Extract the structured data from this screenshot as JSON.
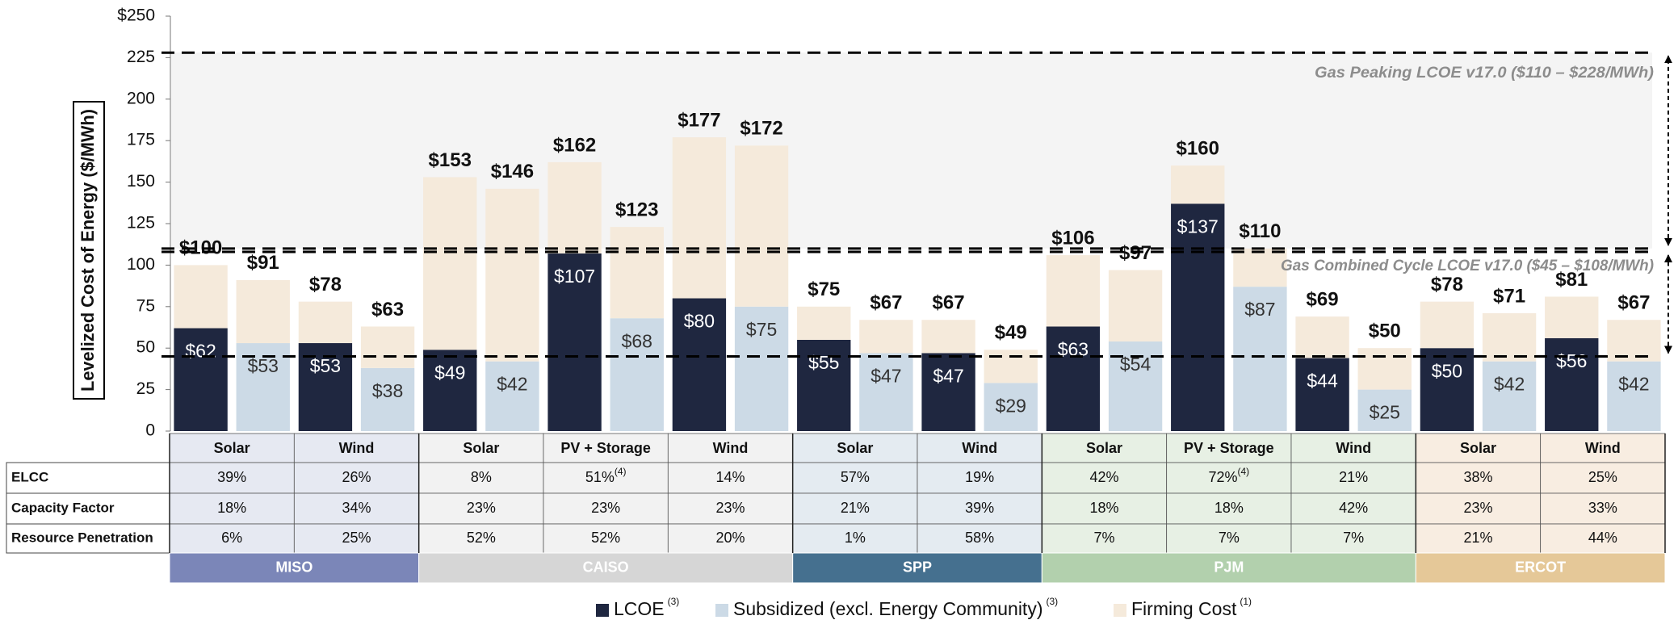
{
  "chart_data": {
    "type": "stacked_bar",
    "ylabel": "Levelized Cost of Energy ($/MWh)",
    "ylim": [
      0,
      250
    ],
    "yticks": [
      0,
      25,
      50,
      75,
      100,
      125,
      150,
      175,
      200,
      225,
      {
        "value": 250,
        "label": "$250"
      }
    ],
    "series": [
      {
        "name": "LCOE",
        "note": "(3)",
        "color": "#1f2740",
        "values": [
          62,
          null,
          53,
          null,
          49,
          null,
          107,
          null,
          80,
          null,
          55,
          null,
          47,
          null,
          63,
          null,
          137,
          null,
          44,
          null,
          50,
          null,
          56,
          null
        ],
        "value_labels": [
          "$62",
          null,
          "$53",
          null,
          "$49",
          null,
          "$107",
          null,
          "$80",
          null,
          "$55",
          null,
          "$47",
          null,
          "$63",
          null,
          "$137",
          null,
          "$44",
          null,
          "$50",
          null,
          "$56",
          null
        ]
      },
      {
        "name": "Subsidized (excl. Energy Community)",
        "note": "(3)",
        "color": "#ccdae6",
        "values": [
          null,
          53,
          null,
          38,
          null,
          42,
          null,
          68,
          null,
          75,
          null,
          47,
          null,
          29,
          null,
          54,
          null,
          87,
          null,
          25,
          null,
          42,
          null,
          42
        ],
        "value_labels": [
          null,
          "$53",
          null,
          "$38",
          null,
          "$42",
          null,
          "$68",
          null,
          "$75",
          null,
          "$47",
          null,
          "$29",
          null,
          "$54",
          null,
          "$87",
          null,
          "$25",
          null,
          "$42",
          null,
          "$42"
        ]
      },
      {
        "name": "Firming Cost",
        "note": "(1)",
        "color": "#f5eadb",
        "values": [
          38,
          38,
          25,
          25,
          104,
          104,
          55,
          55,
          97,
          97,
          20,
          20,
          20,
          20,
          43,
          43,
          23,
          23,
          25,
          25,
          28,
          29,
          25,
          25
        ]
      }
    ],
    "totals": [
      100,
      91,
      78,
      63,
      153,
      146,
      162,
      123,
      177,
      172,
      75,
      67,
      67,
      49,
      106,
      97,
      160,
      110,
      69,
      50,
      78,
      71,
      81,
      67
    ],
    "total_labels": [
      "$100",
      "$91",
      "$78",
      "$63",
      "$153",
      "$146",
      "$162",
      "$123",
      "$177",
      "$172",
      "$75",
      "$67",
      "$67",
      "$49",
      "$106",
      "$97",
      "$160",
      "$110",
      "$69",
      "$50",
      "$78",
      "$71",
      "$81",
      "$67"
    ],
    "reference_bands": [
      {
        "label": "Gas Peaking LCOE v17.0 ($110 – $228/MWh)",
        "low": 110,
        "high": 228
      },
      {
        "label": "Gas Combined Cycle LCOE v17.0 ($45 – $108/MWh)",
        "low": 45,
        "high": 108
      }
    ]
  },
  "table": {
    "row_labels": [
      "ELCC",
      "Capacity Factor",
      "Resource Penetration"
    ],
    "regions": [
      {
        "name": "MISO",
        "color": "#7b86b8",
        "cell_color": "#e6e9f2",
        "columns": [
          {
            "name": "Solar",
            "values": [
              "39%",
              "18%",
              "6%"
            ]
          },
          {
            "name": "Wind",
            "values": [
              "26%",
              "34%",
              "25%"
            ]
          }
        ]
      },
      {
        "name": "CAISO",
        "color": "#d6d6d6",
        "cell_color": "#f2f2f2",
        "columns": [
          {
            "name": "Solar",
            "values": [
              "8%",
              "23%",
              "52%"
            ]
          },
          {
            "name": "PV + Storage",
            "values": [
              "51%",
              "23%",
              "52%"
            ],
            "elcc_note": "(4)"
          },
          {
            "name": "Wind",
            "values": [
              "14%",
              "23%",
              "20%"
            ]
          }
        ]
      },
      {
        "name": "SPP",
        "color": "#45708f",
        "cell_color": "#e4ebf1",
        "columns": [
          {
            "name": "Solar",
            "values": [
              "57%",
              "21%",
              "1%"
            ]
          },
          {
            "name": "Wind",
            "values": [
              "19%",
              "39%",
              "58%"
            ]
          }
        ]
      },
      {
        "name": "PJM",
        "color": "#b2d0ad",
        "cell_color": "#e7f0e4",
        "columns": [
          {
            "name": "Solar",
            "values": [
              "42%",
              "18%",
              "7%"
            ]
          },
          {
            "name": "PV + Storage",
            "values": [
              "72%",
              "18%",
              "7%"
            ],
            "elcc_note": "(4)"
          },
          {
            "name": "Wind",
            "values": [
              "21%",
              "42%",
              "7%"
            ]
          }
        ]
      },
      {
        "name": "ERCOT",
        "color": "#e5c898",
        "cell_color": "#f8ede1",
        "columns": [
          {
            "name": "Solar",
            "values": [
              "38%",
              "23%",
              "21%"
            ]
          },
          {
            "name": "Wind",
            "values": [
              "25%",
              "33%",
              "44%"
            ]
          }
        ]
      }
    ]
  }
}
